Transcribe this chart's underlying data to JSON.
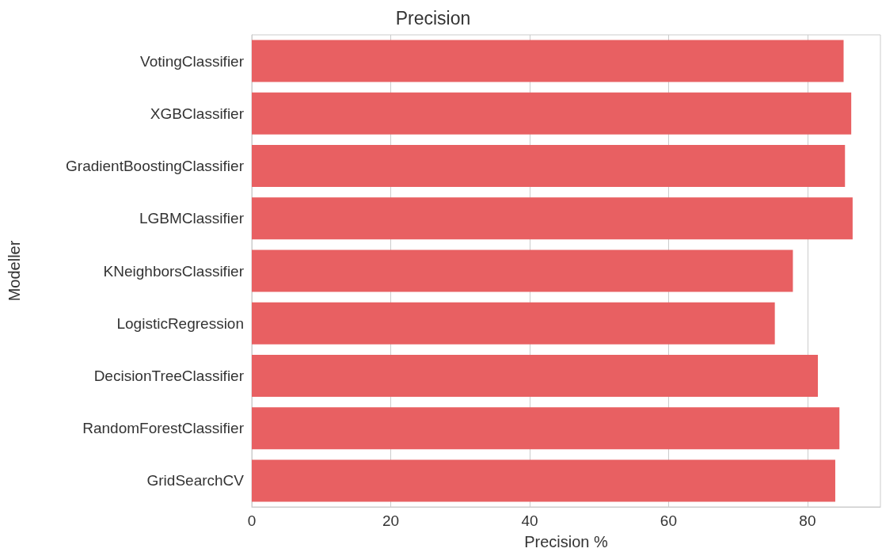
{
  "chart_data": {
    "type": "bar",
    "orientation": "horizontal",
    "title": "Precision",
    "xlabel": "Precision %",
    "ylabel": "Modeller",
    "categories": [
      "VotingClassifier",
      "XGBClassifier",
      "GradientBoostingClassifier",
      "LGBMClassifier",
      "KNeighborsClassifier",
      "LogisticRegression",
      "DecisionTreeClassifier",
      "RandomForestClassifier",
      "GridSearchCV"
    ],
    "values": [
      85.2,
      86.3,
      85.4,
      86.5,
      77.9,
      75.3,
      81.5,
      84.6,
      84.0
    ],
    "color": "#e86062",
    "xlim": [
      0,
      90.5
    ],
    "xticks": [
      0,
      20,
      40,
      60,
      80
    ],
    "grid": "x"
  }
}
